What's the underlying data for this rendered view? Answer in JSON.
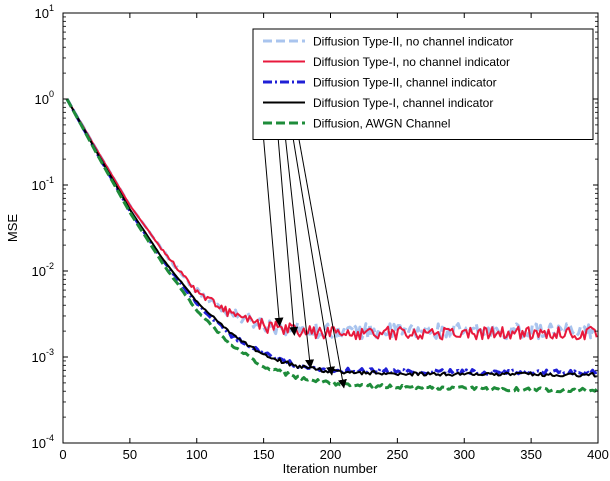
{
  "chart_data": {
    "type": "line",
    "xlabel": "Iteration number",
    "ylabel": "MSE",
    "y_scale": "log",
    "xlim": [
      0,
      400
    ],
    "ylim": [
      0.0001,
      10
    ],
    "x_ticks": [
      "0",
      "50",
      "100",
      "150",
      "200",
      "250",
      "300",
      "350",
      "400"
    ],
    "y_ticks": [
      {
        "base": "10",
        "exp": "-4",
        "value": 0.0001
      },
      {
        "base": "10",
        "exp": "-3",
        "value": 0.001
      },
      {
        "base": "10",
        "exp": "-2",
        "value": 0.01
      },
      {
        "base": "10",
        "exp": "-1",
        "value": 0.1
      },
      {
        "base": "10",
        "exp": "0",
        "value": 1
      },
      {
        "base": "10",
        "exp": "1",
        "value": 10
      }
    ],
    "grid": false,
    "legend_position": "top-right",
    "series": [
      {
        "name": "Diffusion Type-II, no channel indicator",
        "color": "#a9c4ee",
        "dash": "dashed",
        "width": 3,
        "noise": 0.32,
        "points": [
          [
            3,
            1.0
          ],
          [
            25,
            0.26
          ],
          [
            50,
            0.058
          ],
          [
            75,
            0.017
          ],
          [
            100,
            0.0058
          ],
          [
            125,
            0.0032
          ],
          [
            150,
            0.0024
          ],
          [
            175,
            0.0021
          ],
          [
            200,
            0.002
          ],
          [
            250,
            0.002
          ],
          [
            300,
            0.002
          ],
          [
            350,
            0.002
          ],
          [
            400,
            0.002
          ]
        ]
      },
      {
        "name": "Diffusion Type-I, no channel indicator",
        "color": "#e8193c",
        "dash": "solid",
        "width": 2,
        "noise": 0.28,
        "points": [
          [
            3,
            1.0
          ],
          [
            25,
            0.26
          ],
          [
            50,
            0.058
          ],
          [
            75,
            0.017
          ],
          [
            100,
            0.0058
          ],
          [
            125,
            0.0032
          ],
          [
            150,
            0.0023
          ],
          [
            175,
            0.002
          ],
          [
            200,
            0.0019
          ],
          [
            250,
            0.0019
          ],
          [
            300,
            0.0019
          ],
          [
            350,
            0.0019
          ],
          [
            400,
            0.0019
          ]
        ]
      },
      {
        "name": "Diffusion Type-II, channel indicator",
        "color": "#1f1fd6",
        "dash": "dashdot",
        "width": 3,
        "noise": 0.1,
        "points": [
          [
            3,
            1.0
          ],
          [
            25,
            0.24
          ],
          [
            50,
            0.05
          ],
          [
            75,
            0.013
          ],
          [
            100,
            0.0042
          ],
          [
            125,
            0.0018
          ],
          [
            150,
            0.0011
          ],
          [
            175,
            0.0008
          ],
          [
            200,
            0.0007
          ],
          [
            250,
            0.00068
          ],
          [
            300,
            0.00067
          ],
          [
            350,
            0.00067
          ],
          [
            400,
            0.00066
          ]
        ]
      },
      {
        "name": "Diffusion Type-I, channel indicator",
        "color": "#000000",
        "dash": "solid",
        "width": 2,
        "noise": 0.08,
        "points": [
          [
            3,
            1.0
          ],
          [
            25,
            0.245
          ],
          [
            50,
            0.052
          ],
          [
            75,
            0.0135
          ],
          [
            100,
            0.0044
          ],
          [
            125,
            0.0019
          ],
          [
            150,
            0.00105
          ],
          [
            175,
            0.00078
          ],
          [
            200,
            0.00068
          ],
          [
            250,
            0.00064
          ],
          [
            300,
            0.00063
          ],
          [
            350,
            0.00063
          ],
          [
            400,
            0.00062
          ]
        ]
      },
      {
        "name": "Diffusion, AWGN Channel",
        "color": "#1e8c3a",
        "dash": "dashed",
        "width": 3,
        "noise": 0.08,
        "points": [
          [
            3,
            1.0
          ],
          [
            25,
            0.235
          ],
          [
            50,
            0.048
          ],
          [
            75,
            0.012
          ],
          [
            100,
            0.0035
          ],
          [
            125,
            0.0014
          ],
          [
            150,
            0.00078
          ],
          [
            175,
            0.00058
          ],
          [
            200,
            0.00049
          ],
          [
            250,
            0.00045
          ],
          [
            300,
            0.00043
          ],
          [
            350,
            0.00042
          ],
          [
            400,
            0.00041
          ]
        ]
      }
    ],
    "annotation_arrows": [
      {
        "from": [
          143,
          6.3
        ],
        "to": [
          162,
          0.0023
        ]
      },
      {
        "from": [
          156,
          2.9
        ],
        "to": [
          173,
          0.0018
        ]
      },
      {
        "from": [
          162,
          1.45
        ],
        "to": [
          185,
          0.00075
        ]
      },
      {
        "from": [
          168,
          0.85
        ],
        "to": [
          201,
          0.00062
        ]
      },
      {
        "from": [
          174,
          0.55
        ],
        "to": [
          210,
          0.00044
        ]
      }
    ]
  }
}
